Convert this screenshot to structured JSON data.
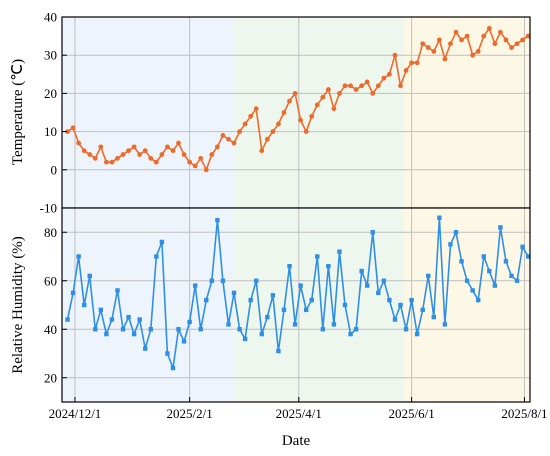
{
  "chart_data": [
    {
      "type": "line",
      "panel": "top",
      "ylabel": "Temperature (℃)",
      "ylim": [
        -10,
        40
      ],
      "yticks": [
        "-10",
        "0",
        "10",
        "20",
        "30",
        "40"
      ],
      "color": "#ee6a2b",
      "marker": "circle",
      "series": [
        {
          "x": [
            "2024-11-27",
            "2024-11-30",
            "2024-12-03",
            "2024-12-06",
            "2024-12-09",
            "2024-12-12",
            "2024-12-15",
            "2024-12-18",
            "2024-12-21",
            "2024-12-24",
            "2024-12-27",
            "2024-12-30",
            "2025-01-02",
            "2025-01-05",
            "2025-01-08",
            "2025-01-11",
            "2025-01-14",
            "2025-01-17",
            "2025-01-20",
            "2025-01-23",
            "2025-01-26",
            "2025-01-29",
            "2025-02-01",
            "2025-02-04",
            "2025-02-07",
            "2025-02-10",
            "2025-02-13",
            "2025-02-16",
            "2025-02-19",
            "2025-02-22",
            "2025-02-25",
            "2025-02-28",
            "2025-03-03",
            "2025-03-06",
            "2025-03-09",
            "2025-03-12",
            "2025-03-15",
            "2025-03-18",
            "2025-03-21",
            "2025-03-24",
            "2025-03-27",
            "2025-03-30",
            "2025-04-02",
            "2025-04-05",
            "2025-04-08",
            "2025-04-11",
            "2025-04-14",
            "2025-04-17",
            "2025-04-20",
            "2025-04-23",
            "2025-04-26",
            "2025-04-29",
            "2025-05-02",
            "2025-05-05",
            "2025-05-08",
            "2025-05-11",
            "2025-05-14",
            "2025-05-17",
            "2025-05-20",
            "2025-05-23",
            "2025-05-26",
            "2025-05-29",
            "2025-06-01",
            "2025-06-04",
            "2025-06-07",
            "2025-06-10",
            "2025-06-13",
            "2025-06-16",
            "2025-06-19",
            "2025-06-22",
            "2025-06-25",
            "2025-06-28",
            "2025-07-01",
            "2025-07-04",
            "2025-07-07",
            "2025-07-10",
            "2025-07-13",
            "2025-07-16",
            "2025-07-19",
            "2025-07-22",
            "2025-07-25",
            "2025-07-28",
            "2025-07-31",
            "2025-08-03"
          ],
          "y": [
            10,
            11,
            7,
            5,
            4,
            3,
            6,
            2,
            2,
            3,
            4,
            5,
            6,
            4,
            5,
            3,
            2,
            4,
            6,
            5,
            7,
            4,
            2,
            1,
            3,
            0,
            4,
            6,
            9,
            8,
            7,
            10,
            12,
            14,
            16,
            5,
            8,
            10,
            12,
            15,
            18,
            20,
            13,
            10,
            14,
            17,
            19,
            21,
            16,
            20,
            22,
            22,
            21,
            22,
            23,
            20,
            22,
            24,
            25,
            30,
            22,
            26,
            28,
            28,
            33,
            32,
            31,
            34,
            29,
            33,
            36,
            34,
            35,
            30,
            31,
            35,
            37,
            33,
            36,
            34,
            32,
            33,
            34,
            35
          ]
        }
      ]
    },
    {
      "type": "line",
      "panel": "bottom",
      "ylabel": "Relative Humidity (%)",
      "ylim": [
        10,
        90
      ],
      "yticks": [
        "20",
        "40",
        "60",
        "80"
      ],
      "xlabel": "Date",
      "xticks": [
        "2024/12/1",
        "2025/2/1",
        "2025/4/1",
        "2025/6/1",
        "2025/8/1"
      ],
      "color": "#2f8fe6",
      "marker": "square",
      "series": [
        {
          "x": [
            "2024-11-27",
            "2024-11-30",
            "2024-12-03",
            "2024-12-06",
            "2024-12-09",
            "2024-12-12",
            "2024-12-15",
            "2024-12-18",
            "2024-12-21",
            "2024-12-24",
            "2024-12-27",
            "2024-12-30",
            "2025-01-02",
            "2025-01-05",
            "2025-01-08",
            "2025-01-11",
            "2025-01-14",
            "2025-01-17",
            "2025-01-20",
            "2025-01-23",
            "2025-01-26",
            "2025-01-29",
            "2025-02-01",
            "2025-02-04",
            "2025-02-07",
            "2025-02-10",
            "2025-02-13",
            "2025-02-16",
            "2025-02-19",
            "2025-02-22",
            "2025-02-25",
            "2025-02-28",
            "2025-03-03",
            "2025-03-06",
            "2025-03-09",
            "2025-03-12",
            "2025-03-15",
            "2025-03-18",
            "2025-03-21",
            "2025-03-24",
            "2025-03-27",
            "2025-03-30",
            "2025-04-02",
            "2025-04-05",
            "2025-04-08",
            "2025-04-11",
            "2025-04-14",
            "2025-04-17",
            "2025-04-20",
            "2025-04-23",
            "2025-04-26",
            "2025-04-29",
            "2025-05-02",
            "2025-05-05",
            "2025-05-08",
            "2025-05-11",
            "2025-05-14",
            "2025-05-17",
            "2025-05-20",
            "2025-05-23",
            "2025-05-26",
            "2025-05-29",
            "2025-06-01",
            "2025-06-04",
            "2025-06-07",
            "2025-06-10",
            "2025-06-13",
            "2025-06-16",
            "2025-06-19",
            "2025-06-22",
            "2025-06-25",
            "2025-06-28",
            "2025-07-01",
            "2025-07-04",
            "2025-07-07",
            "2025-07-10",
            "2025-07-13",
            "2025-07-16",
            "2025-07-19",
            "2025-07-22",
            "2025-07-25",
            "2025-07-28",
            "2025-07-31",
            "2025-08-03"
          ],
          "y": [
            44,
            55,
            70,
            50,
            62,
            40,
            48,
            38,
            44,
            56,
            40,
            45,
            38,
            44,
            32,
            40,
            70,
            76,
            30,
            24,
            40,
            35,
            43,
            58,
            40,
            52,
            60,
            85,
            60,
            42,
            55,
            40,
            36,
            52,
            60,
            38,
            45,
            54,
            31,
            48,
            66,
            42,
            58,
            48,
            52,
            70,
            40,
            66,
            42,
            72,
            50,
            38,
            40,
            64,
            58,
            80,
            55,
            60,
            52,
            44,
            50,
            40,
            52,
            38,
            48,
            62,
            45,
            86,
            42,
            75,
            80,
            68,
            60,
            56,
            52,
            70,
            64,
            58,
            82,
            68,
            62,
            60,
            74,
            70
          ]
        }
      ]
    }
  ]
}
